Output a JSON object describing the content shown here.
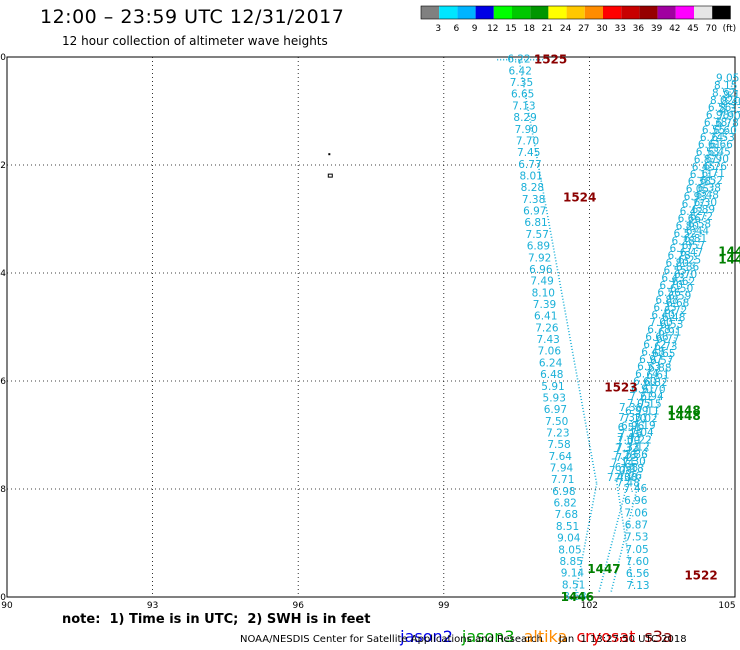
{
  "header": {
    "title": "12:00 – 23:59 UTC 12/31/2017",
    "subtitle": "12 hour collection of altimeter wave heights"
  },
  "legend": {
    "colors": [
      "#808080",
      "#00e6ff",
      "#00b4ff",
      "#0000e6",
      "#00ff00",
      "#00c800",
      "#009600",
      "#ffff00",
      "#ffc800",
      "#ff8c00",
      "#ff0000",
      "#c80000",
      "#960000",
      "#a000a0",
      "#ff00ff",
      "#e6e6e6",
      "#000000"
    ],
    "labels": [
      "3",
      "6",
      "9",
      "12",
      "15",
      "18",
      "21",
      "24",
      "27",
      "30",
      "33",
      "36",
      "39",
      "42",
      "45",
      "70",
      "(ft)"
    ]
  },
  "axes": {
    "x_ticks": [
      "90",
      "93",
      "96",
      "99",
      "102",
      "105"
    ],
    "y_ticks": [
      "-10",
      "-12",
      "-14",
      "-16",
      "-18",
      "-20"
    ]
  },
  "map": {
    "island_color": "#000000",
    "track_color": "#1ab0d8"
  },
  "tracks": {
    "track_a": [
      "6.22",
      "6.42",
      "7.35",
      "6.65",
      "7.13",
      "8.29",
      "7.90",
      "7.70",
      "7.45",
      "6.77",
      "8.01",
      "8.28",
      "7.38",
      "6.97",
      "6.81",
      "7.57",
      "6.89",
      "7.92",
      "6.96",
      "7.49",
      "8.10",
      "7.39",
      "6.41",
      "7.26",
      "7.43",
      "7.06",
      "6.24",
      "6.48",
      "5.91",
      "5.93",
      "6.97",
      "7.50",
      "7.23",
      "7.58",
      "7.64",
      "7.94",
      "7.71",
      "6.98",
      "6.82",
      "7.68",
      "8.51",
      "9.04",
      "8.05",
      "8.85",
      "9.14",
      "8.51",
      "8.68"
    ],
    "track_b": [
      "7.46",
      "6.96",
      "7.06",
      "6.87",
      "7.53",
      "7.05",
      "7.60",
      "6.56",
      "7.13"
    ],
    "track_c": [
      "7.36",
      "7.33",
      "6.51",
      "7.43",
      "7.33",
      "7.23",
      "6.98",
      "7.08"
    ],
    "track_d": [
      "9.05",
      "8.15",
      "8.52",
      "8.02",
      "6.56",
      "6.98",
      "6.38",
      "6.55",
      "6.24",
      "6.61",
      "6.53",
      "6.87",
      "6.45",
      "6.11",
      "6.38",
      "6.05",
      "6.93",
      "6.77",
      "6.42",
      "6.66",
      "6.80",
      "6.52",
      "6.38",
      "6.17",
      "6.78",
      "6.80",
      "6.55",
      "6.43",
      "6.70",
      "6.56",
      "6.88",
      "6.35",
      "6.40",
      "7.00",
      "6.78",
      "6.66",
      "6.72",
      "6.48",
      "6.97",
      "6.53",
      "6.74",
      "6.60",
      "6.91",
      "7.21",
      "7.05",
      "6.99",
      "7.10",
      "6.96",
      "7.16",
      "7.00",
      "7.32",
      "7.28",
      "7.14",
      "7.08",
      "7.43"
    ],
    "track_e": [
      "9.11",
      "8.40",
      "8.33",
      "7.90",
      "6.78",
      "6.60",
      "6.53",
      "6.66",
      "6.45",
      "6.90",
      "6.76",
      "6.71",
      "6.52",
      "6.38",
      "6.48",
      "6.30",
      "6.89",
      "6.72",
      "6.58",
      "6.44",
      "6.81",
      "6.57",
      "6.47",
      "6.25",
      "6.86",
      "6.70",
      "6.62",
      "6.50",
      "6.59",
      "6.68",
      "6.72",
      "6.48",
      "6.53",
      "6.91",
      "6.77",
      "6.73",
      "6.65",
      "6.57",
      "6.88",
      "6.61",
      "6.82",
      "6.70",
      "6.94",
      "7.15",
      "7.11",
      "7.02",
      "7.19",
      "7.04",
      "7.22",
      "7.12",
      "7.36",
      "7.30",
      "7.18",
      "7.26",
      "7.48"
    ],
    "times": [
      {
        "text": "1525",
        "color": "#8b0000",
        "lon": 101.2,
        "lat": -10.05
      },
      {
        "text": "1524",
        "color": "#8b0000",
        "lon": 101.8,
        "lat": -12.6
      },
      {
        "text": "1523",
        "color": "#8b0000",
        "lon": 102.65,
        "lat": -16.12
      },
      {
        "text": "1522",
        "color": "#8b0000",
        "lon": 104.3,
        "lat": -19.6
      },
      {
        "text": "1449",
        "color": "#008000",
        "lon": 105.0,
        "lat": -13.6
      },
      {
        "text": "1449",
        "color": "#008000",
        "lon": 105.0,
        "lat": -13.75
      },
      {
        "text": "1448",
        "color": "#008000",
        "lon": 103.95,
        "lat": -16.55
      },
      {
        "text": "1448",
        "color": "#008000",
        "lon": 103.95,
        "lat": -16.65
      },
      {
        "text": "1447",
        "color": "#008000",
        "lon": 102.3,
        "lat": -19.48
      },
      {
        "text": "1446",
        "color": "#008000",
        "lon": 101.75,
        "lat": -20.0
      }
    ]
  },
  "footer": {
    "note": "note:  1) Time is in UTC;  2) SWH is in feet",
    "satellites": [
      {
        "name": "jason2",
        "color": "#0000e6"
      },
      {
        "name": "jason3",
        "color": "#00a000"
      },
      {
        "name": "altika",
        "color": "#ff8c00"
      },
      {
        "name": "cryosat",
        "color": "#e60000"
      },
      {
        "name": "s3a",
        "color": "#8b0000"
      }
    ],
    "credit": "NOAA/NESDIS Center for Satellite Applications and Research     Jan  1 13:27:50 UTC 2018"
  }
}
